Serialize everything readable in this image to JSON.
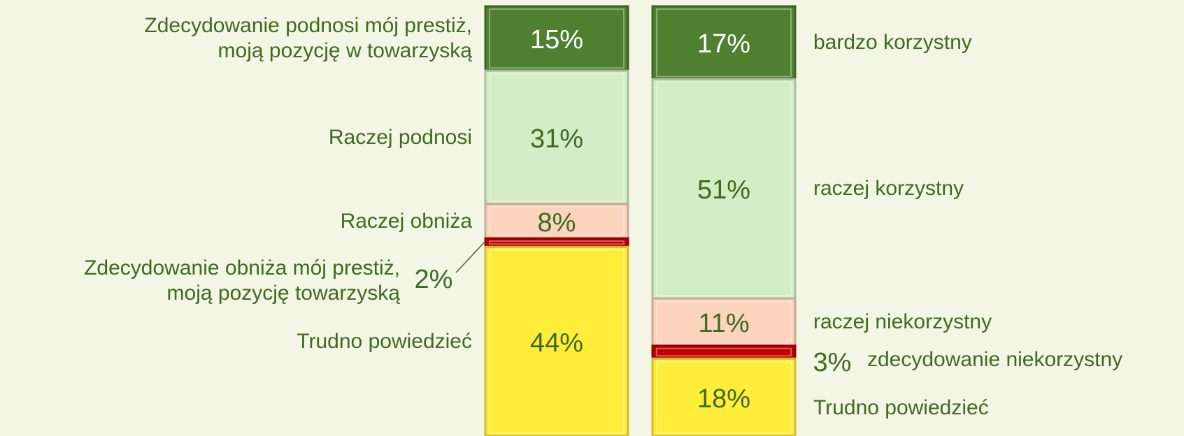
{
  "chart_data": [
    {
      "type": "bar",
      "categories": [
        "Zdecydowanie podnosi mój prestiż,\nmoją pozycję w towarzyską",
        "Raczej podnosi",
        "Raczej obniża",
        "Zdecydowanie obniża mój prestiż,\nmoją pozycję towarzyską",
        "Trudno powiedzieć"
      ],
      "values": [
        15,
        31,
        8,
        2,
        44
      ],
      "value_labels": [
        "15%",
        "31%",
        "8%",
        "2%",
        "44%"
      ],
      "colors": [
        "#4f8030",
        "#d3edc6",
        "#fcd3bd",
        "#c00000",
        "#ffed3a"
      ],
      "ylim": [
        0,
        100
      ]
    },
    {
      "type": "bar",
      "categories": [
        "bardzo korzystny",
        "raczej korzystny",
        "raczej niekorzystny",
        "zdecydowanie niekorzystny",
        "Trudno powiedzieć"
      ],
      "values": [
        17,
        51,
        11,
        3,
        18
      ],
      "value_labels": [
        "17%",
        "51%",
        "11%",
        "3%",
        "18%"
      ],
      "colors": [
        "#4f8030",
        "#d3edc6",
        "#fcd3bd",
        "#c00000",
        "#ffed3a"
      ],
      "ylim": [
        0,
        100
      ]
    }
  ]
}
